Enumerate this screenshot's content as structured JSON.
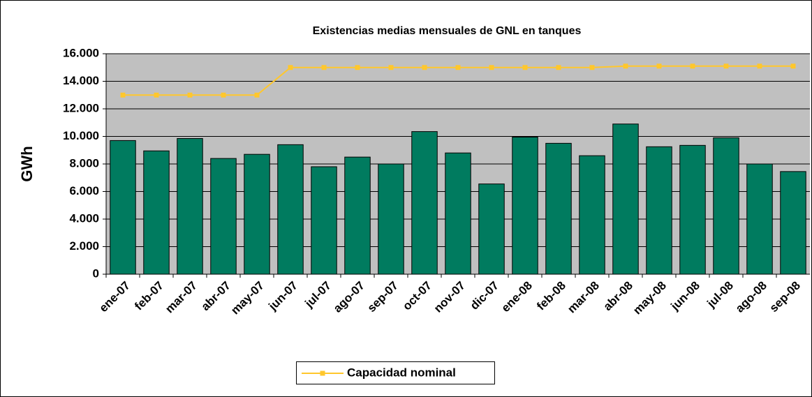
{
  "chart_data": {
    "type": "bar",
    "title": "Existencias medias mensuales de GNL en tanques",
    "y_label": "GWh",
    "categories": [
      "ene-07",
      "feb-07",
      "mar-07",
      "abr-07",
      "may-07",
      "jun-07",
      "jul-07",
      "ago-07",
      "sep-07",
      "oct-07",
      "nov-07",
      "dic-07",
      "ene-08",
      "feb-08",
      "mar-08",
      "abr-08",
      "may-08",
      "jun-08",
      "jul-08",
      "ago-08",
      "sep-08"
    ],
    "series": [
      {
        "type": "bar",
        "color": "#007b5f",
        "values": [
          9700,
          8950,
          9850,
          8400,
          8700,
          9400,
          7800,
          8500,
          8000,
          10350,
          8800,
          6550,
          9950,
          9500,
          8600,
          10900,
          9250,
          9350,
          9900,
          8000,
          7450
        ]
      },
      {
        "type": "line",
        "name": "Capacidad nominal",
        "color": "#ffc72c",
        "values": [
          13000,
          13000,
          13000,
          13000,
          13000,
          15000,
          15000,
          15000,
          15000,
          15000,
          15000,
          15000,
          15000,
          15000,
          15000,
          15100,
          15100,
          15100,
          15100,
          15100,
          15100
        ]
      }
    ],
    "ylim": [
      0,
      16000
    ],
    "yticks": [
      0,
      {
        "value": 2000,
        "label": "2.000"
      },
      {
        "value": 4000,
        "label": "4.000"
      },
      {
        "value": 6000,
        "label": "6.000"
      },
      {
        "value": 8000,
        "label": "8.000"
      },
      {
        "value": 10000,
        "label": "10.000"
      },
      {
        "value": 12000,
        "label": "12.000"
      },
      {
        "value": 14000,
        "label": "14.000"
      },
      {
        "value": 16000,
        "label": "16.000"
      }
    ],
    "grid": true,
    "plot_background": "#c0c0c0",
    "legend": "bottom"
  }
}
